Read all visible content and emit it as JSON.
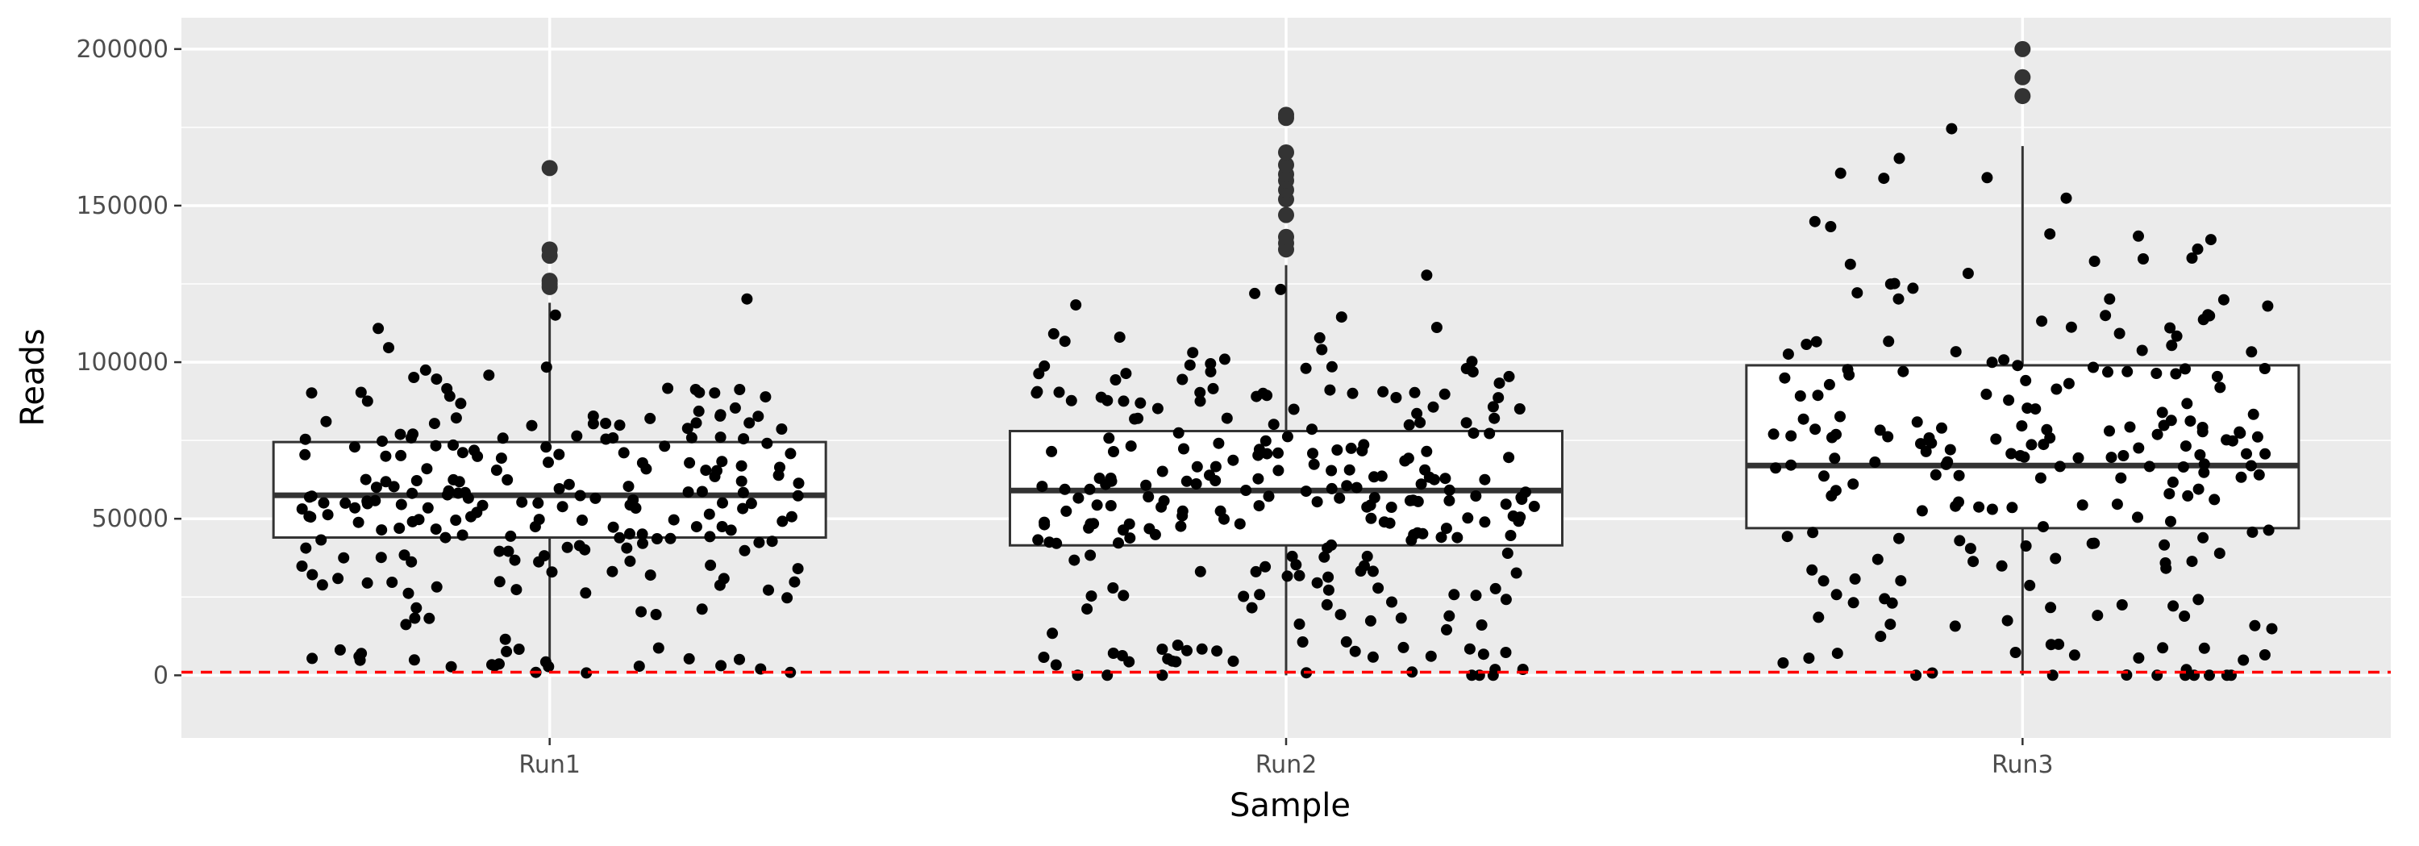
{
  "chart_data": {
    "type": "boxplot",
    "xlabel": "Sample",
    "ylabel": "Reads",
    "categories": [
      "Run1",
      "Run2",
      "Run3"
    ],
    "ylim": [
      -20000,
      210000
    ],
    "y_ticks": [
      0,
      50000,
      100000,
      150000,
      200000
    ],
    "y_tick_labels": [
      "0",
      "50000",
      "100000",
      "150000",
      "200000"
    ],
    "grid": true,
    "legend": "none",
    "reference_line": {
      "y": 1000,
      "color": "#ff0000",
      "style": "dashed"
    },
    "boxes": [
      {
        "category": "Run1",
        "q1": 44000,
        "median": 57500,
        "q3": 74500,
        "whisker_low": 1000,
        "whisker_high": 119000,
        "outliers": [
          124000,
          125000,
          126000,
          134000,
          136000,
          162000
        ]
      },
      {
        "category": "Run2",
        "q1": 41500,
        "median": 59000,
        "q3": 78000,
        "whisker_low": 0,
        "whisker_high": 131000,
        "outliers": [
          136000,
          138000,
          140000,
          147000,
          152000,
          155000,
          158000,
          160000,
          163000,
          167000,
          178000,
          179000
        ]
      },
      {
        "category": "Run3",
        "q1": 47000,
        "median": 67000,
        "q3": 99000,
        "whisker_low": 0,
        "whisker_high": 169000,
        "outliers": [
          185000,
          191000,
          200000
        ]
      }
    ],
    "jitter_counts": {
      "Run1": 230,
      "Run2": 260,
      "Run3": 220
    },
    "colors": {
      "panel": "#ebebeb",
      "grid": "#ffffff",
      "box_fill": "#ffffff",
      "box_stroke": "#333333",
      "point": "#000000",
      "outlier": "#333333"
    }
  }
}
